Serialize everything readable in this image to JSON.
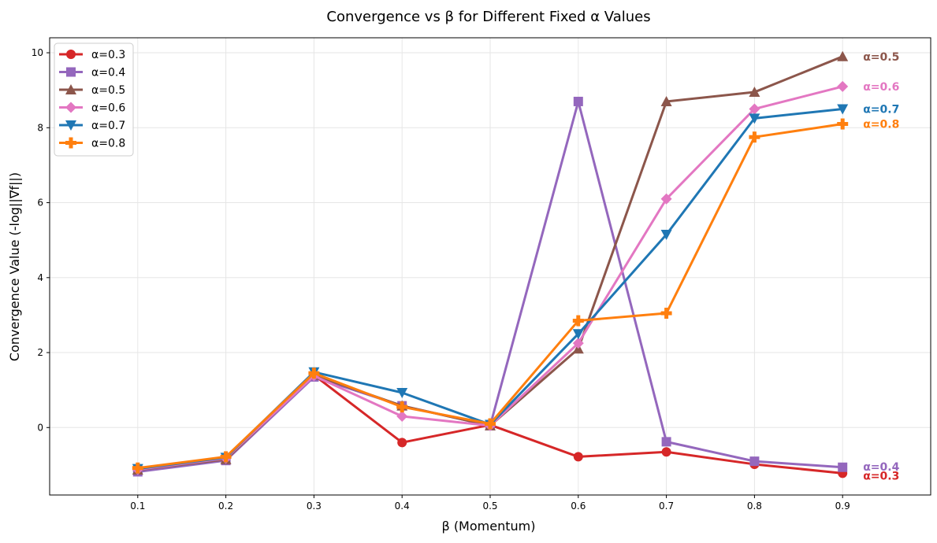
{
  "chart_data": {
    "type": "line",
    "title": "Convergence vs β for Different Fixed α Values",
    "xlabel": "β (Momentum)",
    "ylabel": "Convergence Value (-log||∇f||)",
    "x": [
      0.1,
      0.2,
      0.3,
      0.4,
      0.5,
      0.6,
      0.7,
      0.8,
      0.9
    ],
    "x_tick_labels": [
      "0.1",
      "0.2",
      "0.3",
      "0.4",
      "0.5",
      "0.6",
      "0.7",
      "0.8",
      "0.9"
    ],
    "y_ticks": [
      0,
      2,
      4,
      6,
      8,
      10
    ],
    "y_tick_labels": [
      "0",
      "2",
      "4",
      "6",
      "8",
      "10"
    ],
    "xlim": [
      0.0,
      1.0
    ],
    "ylim": [
      -1.8,
      10.4
    ],
    "grid": true,
    "legend_position": "upper-left",
    "series": [
      {
        "name": "α=0.3",
        "end_label": "α=0.3",
        "color": "#d62728",
        "marker": "circle",
        "values": [
          -1.15,
          -0.85,
          1.4,
          -0.4,
          0.07,
          -0.78,
          -0.65,
          -0.98,
          -1.22
        ]
      },
      {
        "name": "α=0.4",
        "end_label": "α=0.4",
        "color": "#9467bd",
        "marker": "square",
        "values": [
          -1.18,
          -0.88,
          1.35,
          0.58,
          0.05,
          8.7,
          -0.38,
          -0.9,
          -1.06
        ]
      },
      {
        "name": "α=0.5",
        "end_label": "α=0.5",
        "color": "#8c564b",
        "marker": "triangle-up",
        "values": [
          -1.13,
          -0.85,
          1.4,
          0.58,
          0.05,
          2.1,
          8.7,
          8.95,
          9.9
        ]
      },
      {
        "name": "α=0.6",
        "end_label": "α=0.6",
        "color": "#e377c2",
        "marker": "diamond",
        "values": [
          -1.12,
          -0.82,
          1.38,
          0.3,
          0.05,
          2.25,
          6.1,
          8.5,
          9.1
        ]
      },
      {
        "name": "α=0.7",
        "end_label": "α=0.7",
        "color": "#1f77b4",
        "marker": "triangle-down",
        "values": [
          -1.1,
          -0.8,
          1.48,
          0.93,
          0.08,
          2.5,
          5.15,
          8.25,
          8.5
        ]
      },
      {
        "name": "α=0.8",
        "end_label": "α=0.8",
        "color": "#ff7f0e",
        "marker": "plus",
        "values": [
          -1.08,
          -0.78,
          1.45,
          0.55,
          0.1,
          2.85,
          3.05,
          7.75,
          8.1
        ]
      }
    ]
  }
}
